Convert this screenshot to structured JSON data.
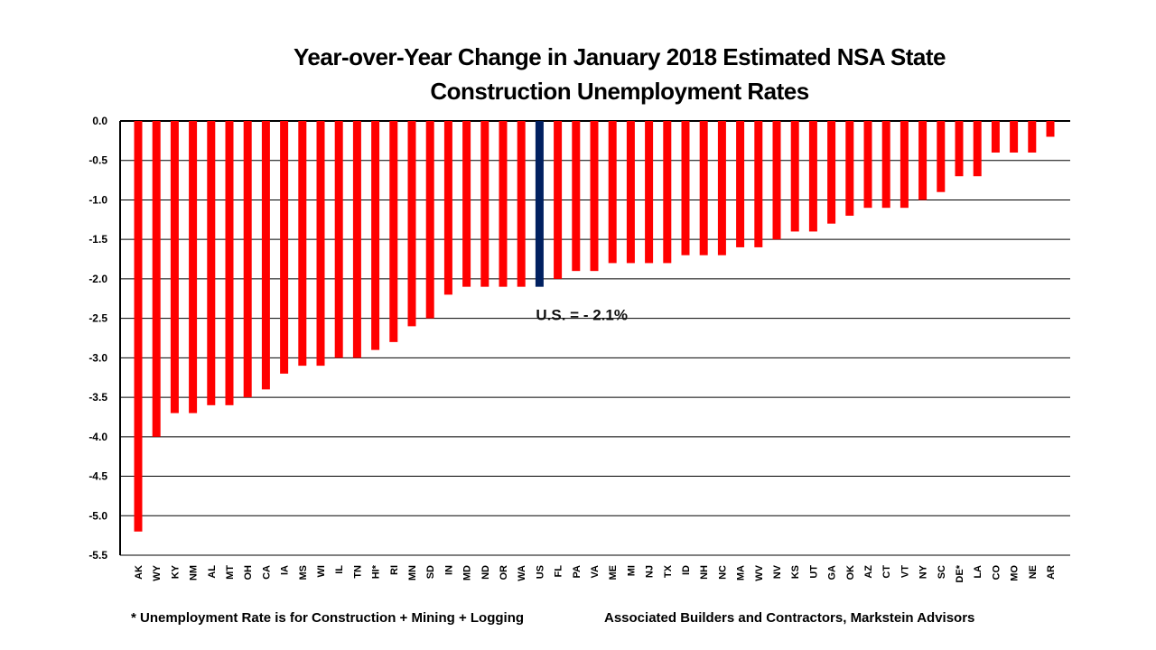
{
  "chart_data": {
    "type": "bar",
    "title_line1": "Year-over-Year Change in January 2018 Estimated NSA State",
    "title_line2": "Construction Unemployment Rates",
    "categories": [
      "AK",
      "WY",
      "KY",
      "NM",
      "AL",
      "MT",
      "OH",
      "CA",
      "IA",
      "MS",
      "WI",
      "IL",
      "TN",
      "HI*",
      "RI",
      "MN",
      "SD",
      "IN",
      "MD",
      "ND",
      "OR",
      "WA",
      "US",
      "FL",
      "PA",
      "VA",
      "ME",
      "MI",
      "NJ",
      "TX",
      "ID",
      "NH",
      "NC",
      "MA",
      "WV",
      "NV",
      "KS",
      "UT",
      "GA",
      "OK",
      "AZ",
      "CT",
      "VT",
      "NY",
      "SC",
      "DE*",
      "LA",
      "CO",
      "MO",
      "NE",
      "AR"
    ],
    "values": [
      -5.2,
      -4.0,
      -3.7,
      -3.7,
      -3.6,
      -3.6,
      -3.5,
      -3.4,
      -3.2,
      -3.1,
      -3.1,
      -3.0,
      -3.0,
      -2.9,
      -2.8,
      -2.6,
      -2.5,
      -2.2,
      -2.1,
      -2.1,
      -2.1,
      -2.1,
      -2.1,
      -2.0,
      -1.9,
      -1.9,
      -1.8,
      -1.8,
      -1.8,
      -1.8,
      -1.7,
      -1.7,
      -1.7,
      -1.6,
      -1.6,
      -1.5,
      -1.4,
      -1.4,
      -1.3,
      -1.2,
      -1.1,
      -1.1,
      -1.1,
      -1.0,
      -0.9,
      -0.7,
      -0.7,
      -0.4,
      -0.4,
      -0.4,
      -0.2
    ],
    "ylim": [
      -5.5,
      0
    ],
    "yticks": [
      "0.0",
      "-0.5",
      "-1.0",
      "-1.5",
      "-2.0",
      "-2.5",
      "-3.0",
      "-3.5",
      "-4.0",
      "-4.5",
      "-5.0",
      "-5.5"
    ],
    "grid": true,
    "highlight_category": "US",
    "colors": {
      "bar": "#ff0000",
      "highlight": "#002060"
    },
    "annotation": "U.S. = - 2.1%"
  },
  "footnote": "* Unemployment Rate is for Construction + Mining + Logging",
  "source": "Associated Builders and Contractors, Markstein Advisors"
}
